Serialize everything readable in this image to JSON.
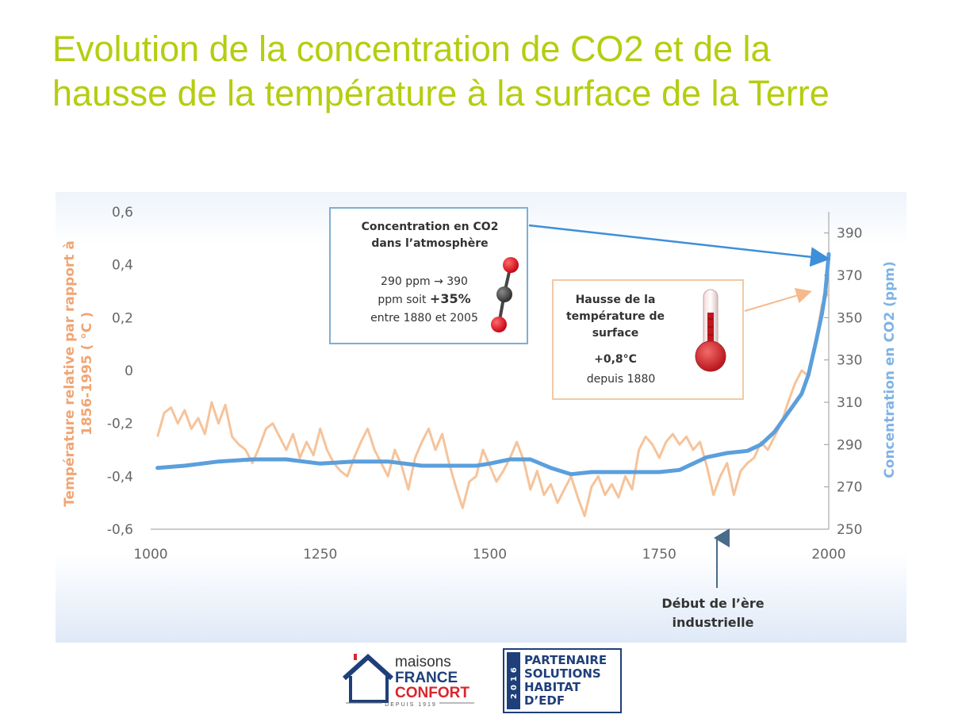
{
  "slide": {
    "title_line1": "Evolution de la concentration de CO2 et de la",
    "title_line2": "hausse de la température à la surface de la Terre"
  },
  "chart_data": {
    "type": "line",
    "xlim": [
      1000,
      2000
    ],
    "x_ticks": [
      "1000",
      "1250",
      "1500",
      "1750",
      "2000"
    ],
    "y_left": {
      "label_line1": "Température relative par rapport à",
      "label_line2": "1856-1995 ( °C )",
      "lim": [
        -0.6,
        0.6
      ],
      "ticks": [
        "0,6",
        "0,4",
        "0,2",
        "0",
        "-0,2",
        "-0,4",
        "-0,6"
      ]
    },
    "y_right": {
      "label": "Concentration en CO2 (ppm)",
      "lim": [
        250,
        400
      ],
      "ticks": [
        "390",
        "370",
        "350",
        "330",
        "310",
        "290",
        "270",
        "250"
      ]
    },
    "series": [
      {
        "axis": "left",
        "color": "#f6c39a",
        "points": [
          [
            1010,
            -0.25
          ],
          [
            1020,
            -0.16
          ],
          [
            1030,
            -0.14
          ],
          [
            1040,
            -0.2
          ],
          [
            1050,
            -0.15
          ],
          [
            1060,
            -0.22
          ],
          [
            1070,
            -0.18
          ],
          [
            1080,
            -0.24
          ],
          [
            1090,
            -0.12
          ],
          [
            1100,
            -0.2
          ],
          [
            1110,
            -0.13
          ],
          [
            1120,
            -0.25
          ],
          [
            1130,
            -0.28
          ],
          [
            1140,
            -0.3
          ],
          [
            1150,
            -0.35
          ],
          [
            1160,
            -0.29
          ],
          [
            1170,
            -0.22
          ],
          [
            1180,
            -0.2
          ],
          [
            1190,
            -0.25
          ],
          [
            1200,
            -0.3
          ],
          [
            1210,
            -0.24
          ],
          [
            1220,
            -0.33
          ],
          [
            1230,
            -0.27
          ],
          [
            1240,
            -0.32
          ],
          [
            1250,
            -0.22
          ],
          [
            1260,
            -0.3
          ],
          [
            1270,
            -0.35
          ],
          [
            1280,
            -0.38
          ],
          [
            1290,
            -0.4
          ],
          [
            1300,
            -0.33
          ],
          [
            1310,
            -0.27
          ],
          [
            1320,
            -0.22
          ],
          [
            1330,
            -0.3
          ],
          [
            1340,
            -0.35
          ],
          [
            1350,
            -0.4
          ],
          [
            1360,
            -0.3
          ],
          [
            1370,
            -0.36
          ],
          [
            1380,
            -0.45
          ],
          [
            1390,
            -0.33
          ],
          [
            1400,
            -0.27
          ],
          [
            1410,
            -0.22
          ],
          [
            1420,
            -0.3
          ],
          [
            1430,
            -0.24
          ],
          [
            1440,
            -0.35
          ],
          [
            1450,
            -0.44
          ],
          [
            1460,
            -0.52
          ],
          [
            1470,
            -0.42
          ],
          [
            1480,
            -0.4
          ],
          [
            1490,
            -0.3
          ],
          [
            1500,
            -0.36
          ],
          [
            1510,
            -0.42
          ],
          [
            1520,
            -0.38
          ],
          [
            1530,
            -0.33
          ],
          [
            1540,
            -0.27
          ],
          [
            1550,
            -0.34
          ],
          [
            1560,
            -0.45
          ],
          [
            1570,
            -0.38
          ],
          [
            1580,
            -0.47
          ],
          [
            1590,
            -0.43
          ],
          [
            1600,
            -0.5
          ],
          [
            1610,
            -0.45
          ],
          [
            1620,
            -0.4
          ],
          [
            1630,
            -0.48
          ],
          [
            1640,
            -0.55
          ],
          [
            1650,
            -0.44
          ],
          [
            1660,
            -0.4
          ],
          [
            1670,
            -0.47
          ],
          [
            1680,
            -0.43
          ],
          [
            1690,
            -0.48
          ],
          [
            1700,
            -0.4
          ],
          [
            1710,
            -0.45
          ],
          [
            1720,
            -0.3
          ],
          [
            1730,
            -0.25
          ],
          [
            1740,
            -0.28
          ],
          [
            1750,
            -0.33
          ],
          [
            1760,
            -0.27
          ],
          [
            1770,
            -0.24
          ],
          [
            1780,
            -0.28
          ],
          [
            1790,
            -0.25
          ],
          [
            1800,
            -0.3
          ],
          [
            1810,
            -0.27
          ],
          [
            1820,
            -0.36
          ],
          [
            1830,
            -0.47
          ],
          [
            1840,
            -0.4
          ],
          [
            1850,
            -0.35
          ],
          [
            1860,
            -0.47
          ],
          [
            1870,
            -0.38
          ],
          [
            1880,
            -0.35
          ],
          [
            1890,
            -0.33
          ],
          [
            1900,
            -0.27
          ],
          [
            1910,
            -0.3
          ],
          [
            1920,
            -0.25
          ],
          [
            1930,
            -0.2
          ],
          [
            1940,
            -0.12
          ],
          [
            1950,
            -0.05
          ],
          [
            1960,
            0.0
          ],
          [
            1970,
            -0.02
          ],
          [
            1980,
            0.1
          ],
          [
            1990,
            0.25
          ],
          [
            2000,
            0.3
          ]
        ]
      },
      {
        "axis": "right",
        "color": "#5b9fdc",
        "points": [
          [
            1010,
            279
          ],
          [
            1050,
            280
          ],
          [
            1100,
            282
          ],
          [
            1150,
            283
          ],
          [
            1200,
            283
          ],
          [
            1250,
            281
          ],
          [
            1300,
            282
          ],
          [
            1350,
            282
          ],
          [
            1400,
            280
          ],
          [
            1450,
            280
          ],
          [
            1480,
            280
          ],
          [
            1500,
            281
          ],
          [
            1530,
            283
          ],
          [
            1560,
            283
          ],
          [
            1590,
            279
          ],
          [
            1620,
            276
          ],
          [
            1650,
            277
          ],
          [
            1700,
            277
          ],
          [
            1750,
            277
          ],
          [
            1780,
            278
          ],
          [
            1800,
            281
          ],
          [
            1820,
            284
          ],
          [
            1850,
            286
          ],
          [
            1880,
            287
          ],
          [
            1900,
            290
          ],
          [
            1920,
            296
          ],
          [
            1940,
            305
          ],
          [
            1960,
            314
          ],
          [
            1970,
            323
          ],
          [
            1980,
            337
          ],
          [
            1990,
            352
          ],
          [
            1995,
            362
          ],
          [
            2000,
            380
          ]
        ]
      }
    ]
  },
  "annotations": {
    "co2_box": {
      "title_line1": "Concentration en CO2",
      "title_line2": "dans l’atmosphère",
      "body_line1": "290 ppm → 390",
      "body_line2_a": "ppm soit ",
      "body_line2_b": "+35%",
      "body_line3": "entre 1880 et 2005"
    },
    "temp_box": {
      "title_line1": "Hausse de la",
      "title_line2": "température de",
      "title_line3": "surface",
      "value": "+0,8°C",
      "since": "depuis 1880"
    },
    "industrial": {
      "line1": "Début de l’ère",
      "line2": "industrielle"
    }
  },
  "logos": {
    "mfc": {
      "word1": "maisons",
      "word2": "FRANCE",
      "word3": "CONFORT",
      "tagline": "DEPUIS 1919"
    },
    "edf": {
      "year": "2016",
      "line1": "PARTENAIRE",
      "line2": "SOLUTIONS",
      "line3": "HABITAT",
      "line4": "D’EDF"
    }
  }
}
